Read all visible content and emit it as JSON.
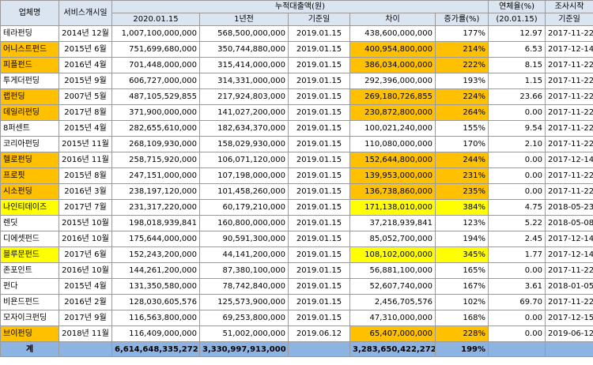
{
  "header": {
    "company": "업체명",
    "service_start": "서비스개시일",
    "cumulative_group": "누적대출액(원)",
    "col_2020": "2020.01.15",
    "col_1y": "1년전",
    "col_base_date": "기준일",
    "col_diff": "차이",
    "col_growth": "증가률(%)",
    "overdue_l1": "연체율(%)",
    "overdue_l2": "(20.01.15)",
    "survey_l1": "조사시작",
    "survey_l2": "기준일"
  },
  "highlight_colors": {
    "orange": "#ffc000",
    "yellow": "#ffff00",
    "header": "#dbe5f1",
    "footer": "#8db3e2"
  },
  "rows": [
    {
      "name": "테라펀딩",
      "start": "2014년 12월",
      "v2020": "1,007,100,000,000",
      "v1y": "568,500,000,000",
      "base": "2019.01.15",
      "diff": "438,600,000,000",
      "growth": "177%",
      "overdue": "12.97",
      "survey": "2017-11-22",
      "name_hl": "",
      "diff_hl": ""
    },
    {
      "name": "어니스트펀드",
      "start": "2015년 6월",
      "v2020": "751,699,680,000",
      "v1y": "350,744,880,000",
      "base": "2019.01.15",
      "diff": "400,954,800,000",
      "growth": "214%",
      "overdue": "6.53",
      "survey": "2017-12-14",
      "name_hl": "orange",
      "diff_hl": "orange"
    },
    {
      "name": "피플펀드",
      "start": "2016년 4월",
      "v2020": "701,448,000,000",
      "v1y": "315,414,000,000",
      "base": "2019.01.15",
      "diff": "386,034,000,000",
      "growth": "222%",
      "overdue": "8.15",
      "survey": "2017-11-22",
      "name_hl": "orange",
      "diff_hl": "orange"
    },
    {
      "name": "투게더펀딩",
      "start": "2015년 9월",
      "v2020": "606,727,000,000",
      "v1y": "314,331,000,000",
      "base": "2019.01.15",
      "diff": "292,396,000,000",
      "growth": "193%",
      "overdue": "1.15",
      "survey": "2017-11-22",
      "name_hl": "",
      "diff_hl": ""
    },
    {
      "name": "랩펀딩",
      "start": "2007년 5월",
      "v2020": "487,105,529,855",
      "v1y": "217,924,803,000",
      "base": "2019.01.15",
      "diff": "269,180,726,855",
      "growth": "224%",
      "overdue": "23.66",
      "survey": "2017-11-22",
      "name_hl": "orange",
      "diff_hl": "orange"
    },
    {
      "name": "데일리펀딩",
      "start": "2017년 8월",
      "v2020": "371,900,000,000",
      "v1y": "141,027,200,000",
      "base": "2019.01.15",
      "diff": "230,872,800,000",
      "growth": "264%",
      "overdue": "0.00",
      "survey": "2017-11-22",
      "name_hl": "orange",
      "diff_hl": "orange"
    },
    {
      "name": "8퍼센트",
      "start": "2015년 4월",
      "v2020": "282,655,610,000",
      "v1y": "182,634,370,000",
      "base": "2019.01.15",
      "diff": "100,021,240,000",
      "growth": "155%",
      "overdue": "9.54",
      "survey": "2017-11-22",
      "name_hl": "",
      "diff_hl": ""
    },
    {
      "name": "코리아펀딩",
      "start": "2015년 11월",
      "v2020": "268,109,930,000",
      "v1y": "158,029,930,000",
      "base": "2019.01.15",
      "diff": "110,080,000,000",
      "growth": "170%",
      "overdue": "2.10",
      "survey": "2017-11-22",
      "name_hl": "",
      "diff_hl": ""
    },
    {
      "name": "헬로펀딩",
      "start": "2016년 11월",
      "v2020": "258,715,920,000",
      "v1y": "106,071,120,000",
      "base": "2019.01.15",
      "diff": "152,644,800,000",
      "growth": "244%",
      "overdue": "0.00",
      "survey": "2017-12-14",
      "name_hl": "orange",
      "diff_hl": "orange"
    },
    {
      "name": "프로핏",
      "start": "2015년 8월",
      "v2020": "247,151,000,000",
      "v1y": "107,198,000,000",
      "base": "2019.01.15",
      "diff": "139,953,000,000",
      "growth": "231%",
      "overdue": "0.00",
      "survey": "2017-11-22",
      "name_hl": "orange",
      "diff_hl": "orange"
    },
    {
      "name": "시소펀딩",
      "start": "2016년 3월",
      "v2020": "238,197,120,000",
      "v1y": "101,458,260,000",
      "base": "2019.01.15",
      "diff": "136,738,860,000",
      "growth": "235%",
      "overdue": "0.00",
      "survey": "2017-11-22",
      "name_hl": "orange",
      "diff_hl": "orange"
    },
    {
      "name": "나인티데이즈",
      "start": "2017년 7월",
      "v2020": "231,317,220,000",
      "v1y": "60,179,210,000",
      "base": "2019.01.15",
      "diff": "171,138,010,000",
      "growth": "384%",
      "overdue": "4.75",
      "survey": "2018-05-23",
      "name_hl": "yellow",
      "diff_hl": "yellow"
    },
    {
      "name": "렌딧",
      "start": "2015년 10월",
      "v2020": "198,018,939,841",
      "v1y": "160,800,000,000",
      "base": "2019.01.15",
      "diff": "37,218,939,841",
      "growth": "123%",
      "overdue": "5.22",
      "survey": "2018-05-08",
      "name_hl": "",
      "diff_hl": ""
    },
    {
      "name": "디에셋펀드",
      "start": "2016년 10월",
      "v2020": "175,644,000,000",
      "v1y": "90,591,300,000",
      "base": "2019.01.15",
      "diff": "85,052,700,000",
      "growth": "194%",
      "overdue": "2.45",
      "survey": "2017-12-14",
      "name_hl": "",
      "diff_hl": ""
    },
    {
      "name": "블루문펀드",
      "start": "2017년 6월",
      "v2020": "152,243,200,000",
      "v1y": "44,141,200,000",
      "base": "2019.01.15",
      "diff": "108,102,000,000",
      "growth": "345%",
      "overdue": "1.77",
      "survey": "2017-12-14",
      "name_hl": "yellow",
      "diff_hl": "yellow"
    },
    {
      "name": "존포인트",
      "start": "2016년 10월",
      "v2020": "144,261,200,000",
      "v1y": "87,380,100,000",
      "base": "2019.01.15",
      "diff": "56,881,100,000",
      "growth": "165%",
      "overdue": "0.00",
      "survey": "2017-11-22",
      "name_hl": "",
      "diff_hl": ""
    },
    {
      "name": "펀다",
      "start": "2015년 4월",
      "v2020": "131,350,580,000",
      "v1y": "78,742,840,000",
      "base": "2019.01.15",
      "diff": "52,607,740,000",
      "growth": "167%",
      "overdue": "3.61",
      "survey": "2018-01-05",
      "name_hl": "",
      "diff_hl": ""
    },
    {
      "name": "비욘드펀드",
      "start": "2016년 2월",
      "v2020": "128,030,605,576",
      "v1y": "125,573,900,000",
      "base": "2019.01.15",
      "diff": "2,456,705,576",
      "growth": "102%",
      "overdue": "69.70",
      "survey": "2017-11-22",
      "name_hl": "",
      "diff_hl": ""
    },
    {
      "name": "모자이크펀딩",
      "start": "2017년 9월",
      "v2020": "116,563,800,000",
      "v1y": "69,253,800,000",
      "base": "2019.01.15",
      "diff": "47,310,000,000",
      "growth": "168%",
      "overdue": "0.00",
      "survey": "2017-12-15",
      "name_hl": "",
      "diff_hl": ""
    },
    {
      "name": "브이펀딩",
      "start": "2018년 11월",
      "v2020": "116,409,000,000",
      "v1y": "51,002,000,000",
      "base": "2019.06.12",
      "diff": "65,407,000,000",
      "growth": "228%",
      "overdue": "0.00",
      "survey": "2019-06-12",
      "name_hl": "orange",
      "diff_hl": "orange"
    }
  ],
  "total": {
    "label": "계",
    "v2020": "6,614,648,335,272",
    "v1y": "3,330,997,913,000",
    "diff": "3,283,650,422,272",
    "growth": "199%"
  }
}
